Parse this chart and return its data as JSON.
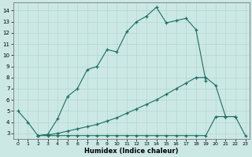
{
  "xlabel": "Humidex (Indice chaleur)",
  "background_color": "#cce8e4",
  "grid_color": "#b0d8d0",
  "line_color": "#1a7060",
  "xlim_min": -0.5,
  "xlim_max": 23.4,
  "ylim_min": 2.5,
  "ylim_max": 14.7,
  "xtick_vals": [
    0,
    1,
    2,
    3,
    4,
    5,
    6,
    7,
    8,
    9,
    10,
    11,
    12,
    13,
    14,
    15,
    16,
    17,
    18,
    19,
    20,
    21,
    22,
    23
  ],
  "ytick_vals": [
    3,
    4,
    5,
    6,
    7,
    8,
    9,
    10,
    11,
    12,
    13,
    14
  ],
  "line1_x": [
    0,
    1,
    2,
    3,
    4,
    5,
    6,
    7,
    8,
    9,
    10,
    11,
    12,
    13,
    14,
    15,
    16,
    17,
    18,
    19
  ],
  "line1_y": [
    5.0,
    4.0,
    2.8,
    2.9,
    4.3,
    6.3,
    7.0,
    8.7,
    9.0,
    10.5,
    10.3,
    12.1,
    13.0,
    13.5,
    14.3,
    12.9,
    13.1,
    13.3,
    12.3,
    7.7
  ],
  "line2_x": [
    2,
    3,
    4,
    5,
    6,
    7,
    8,
    9,
    10,
    11,
    12,
    13,
    14,
    15,
    16,
    17,
    18,
    19,
    20,
    21,
    22
  ],
  "line2_y": [
    2.8,
    2.85,
    3.0,
    3.2,
    3.4,
    3.6,
    3.8,
    4.1,
    4.4,
    4.8,
    5.2,
    5.6,
    6.0,
    6.5,
    7.0,
    7.5,
    8.0,
    8.0,
    7.3,
    4.5,
    4.5
  ],
  "line3_x": [
    2,
    3,
    4,
    5,
    6,
    7,
    8,
    9,
    10,
    11,
    12,
    13,
    14,
    15,
    16,
    17,
    18,
    19,
    20,
    21,
    22,
    23
  ],
  "line3_y": [
    2.8,
    2.8,
    2.8,
    2.8,
    2.8,
    2.8,
    2.8,
    2.8,
    2.8,
    2.8,
    2.8,
    2.8,
    2.8,
    2.8,
    2.8,
    2.8,
    2.8,
    2.8,
    4.5,
    4.5,
    4.5,
    2.8
  ]
}
